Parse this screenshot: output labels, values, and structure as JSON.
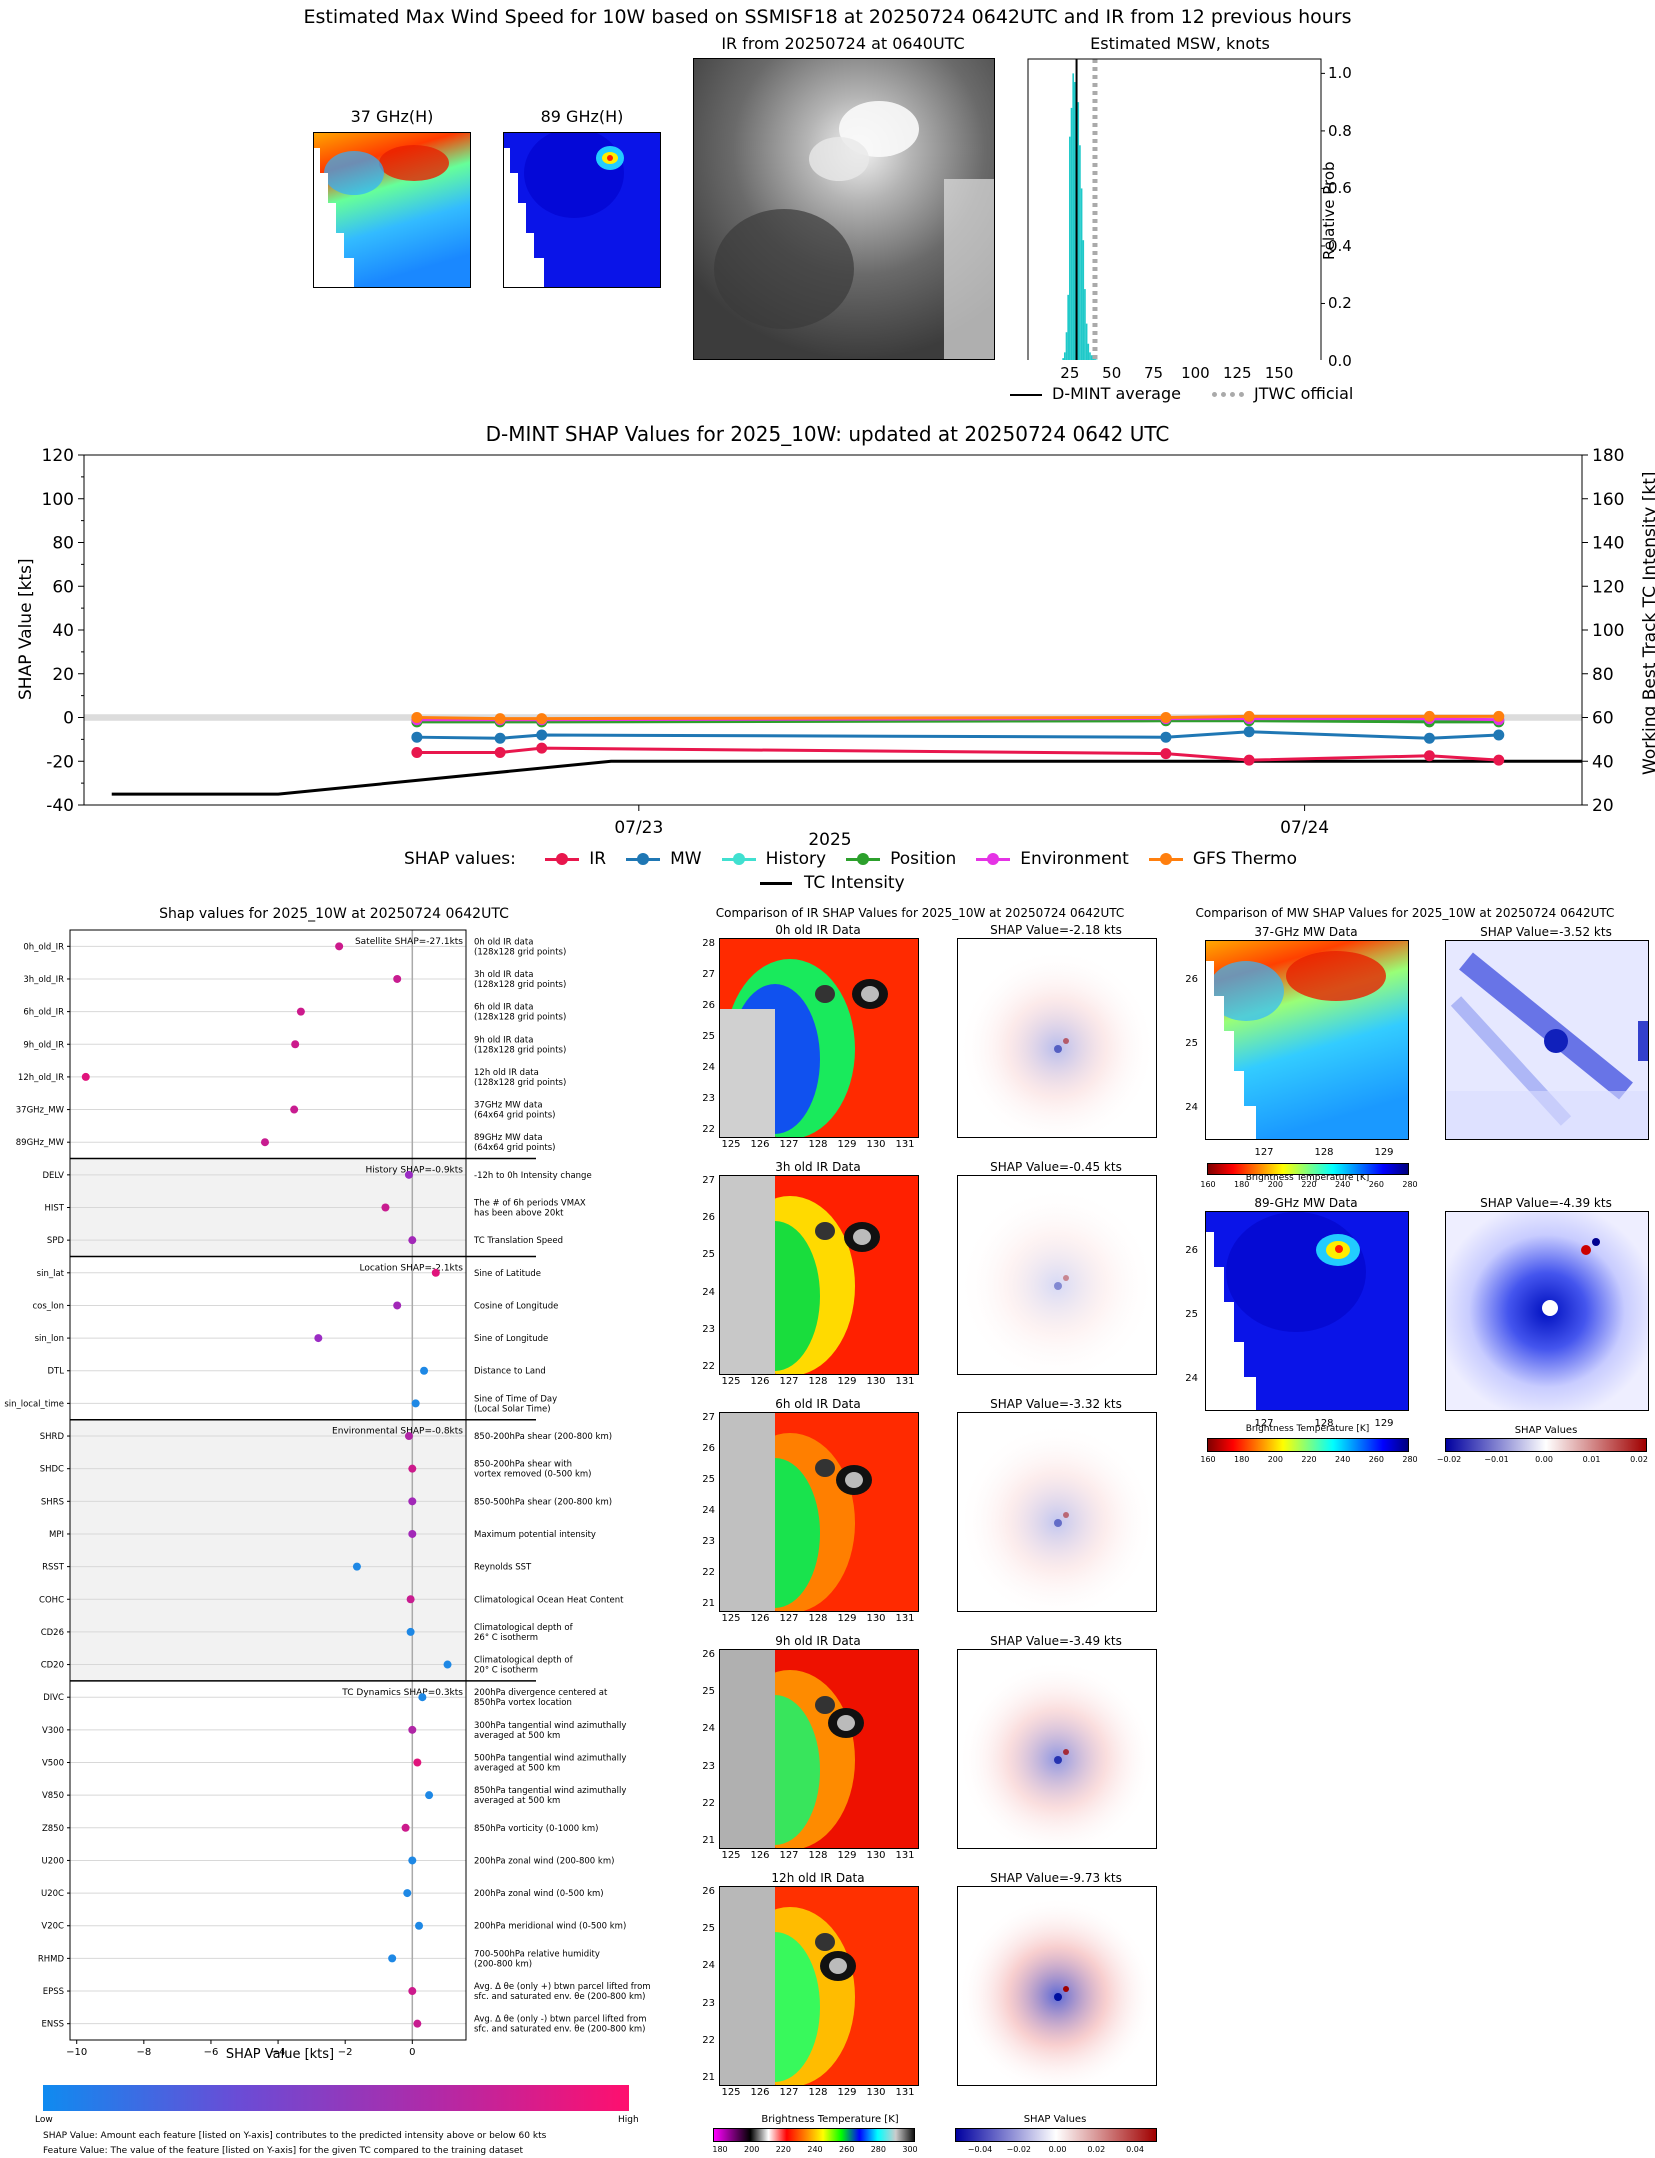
{
  "page_title": "Estimated Max Wind Speed for 10W based on SSMISF18 at 20250724 0642UTC and IR from 12 previous hours",
  "top": {
    "p37_title": "37 GHz(H)",
    "p89_title": "89 GHz(H)",
    "ir_title": "IR from 20250724 at 0640UTC",
    "msw_title": "Estimated MSW, knots",
    "msw_ylabel": "Relative Prob",
    "legend_dmint": "D-MINT average",
    "legend_jtwc": "JTWC official"
  },
  "shap_ts": {
    "title": "D-MINT SHAP Values for 2025_10W: updated at 20250724 0642 UTC",
    "ylabel_left": "SHAP Value [kts]",
    "ylabel_right": "Working Best Track TC Intensity [kt]",
    "year_label": "2025",
    "legend_prefix": "SHAP values:",
    "tc_label": "TC Intensity"
  },
  "bar": {
    "title": "Shap values for 2025_10W at 20250724 0642UTC",
    "xlabel": "SHAP Value [kts]",
    "cb_low": "Low",
    "cb_high": "High",
    "note1": "SHAP Value: Amount each feature [listed on Y-axis] contributes to the predicted intensity above or below 60 kts",
    "note2": "Feature Value: The value of the feature [listed on Y-axis] for the given TC compared to the training dataset",
    "group_labels": [
      "Satellite SHAP=-27.1kts",
      "History SHAP=-0.9kts",
      "Location SHAP=-2.1kts",
      "Environmental SHAP=-0.8kts",
      "TC Dynamics SHAP=0.3kts"
    ]
  },
  "ir": {
    "title": "Comparison of IR SHAP Values for 2025_10W at 20250724 0642UTC",
    "data_titles": [
      "0h old IR Data",
      "3h old IR Data",
      "6h old IR Data",
      "9h old IR Data",
      "12h old IR Data"
    ],
    "shap_titles": [
      "SHAP Value=-2.18 kts",
      "SHAP Value=-0.45 kts",
      "SHAP Value=-3.32 kts",
      "SHAP Value=-3.49 kts",
      "SHAP Value=-9.73 kts"
    ],
    "cb_label": "Brightness Temperature [K]",
    "shap_cb_label": "SHAP Values"
  },
  "mw": {
    "title": "Comparison of MW SHAP Values for 2025_10W at 20250724 0642UTC",
    "t37": "37-GHz MW Data",
    "t89": "89-GHz MW Data",
    "s37": "SHAP Value=-3.52 kts",
    "s89": "SHAP Value=-4.39 kts",
    "cb_label": "Brightness Temperature [K]",
    "shap_cb_label": "SHAP Values"
  },
  "chart_data": [
    {
      "type": "bar",
      "name": "msw_histogram",
      "title": "Estimated MSW, knots",
      "ylabel": "Relative Prob",
      "x": [
        21,
        22,
        23,
        24,
        25,
        26,
        27,
        28,
        29,
        30,
        31,
        32,
        33,
        34,
        35,
        36,
        37,
        38,
        39,
        40,
        41,
        42
      ],
      "values": [
        0.01,
        0.03,
        0.1,
        0.23,
        0.78,
        0.88,
        1.0,
        0.97,
        0.94,
        0.9,
        0.75,
        0.6,
        0.42,
        0.25,
        0.13,
        0.06,
        0.03,
        0.02,
        0.01,
        0.01,
        0.005,
        0.002
      ],
      "xlim": [
        0,
        175
      ],
      "ylim": [
        0,
        1.05
      ],
      "xticks": [
        25,
        50,
        75,
        100,
        125,
        150
      ],
      "yticks": [
        0.0,
        0.2,
        0.4,
        0.6,
        0.8,
        1.0
      ],
      "dmint_average": 29,
      "jtwc_official": 40
    },
    {
      "type": "line",
      "name": "shap_timeseries",
      "title": "D-MINT SHAP Values for 2025_10W: updated at 20250724 0642 UTC",
      "ylabel": "SHAP Value [kts]",
      "y2label": "Working Best Track TC Intensity [kt]",
      "ylim": [
        -40,
        120
      ],
      "y2lim": [
        20,
        180
      ],
      "yticks": [
        -40,
        -20,
        0,
        20,
        40,
        60,
        80,
        100,
        120
      ],
      "y2ticks": [
        20,
        40,
        60,
        80,
        100,
        120,
        140,
        160,
        180
      ],
      "xlim_hours": [
        0,
        54
      ],
      "xtick_labels": [
        {
          "h": 20,
          "label": "07/23"
        },
        {
          "h": 44,
          "label": "07/24"
        }
      ],
      "series": [
        {
          "name": "IR",
          "color": "#e8174d",
          "x": [
            12,
            15,
            16.5,
            39,
            42,
            48.5,
            51
          ],
          "values": [
            -16,
            -16,
            -14,
            -16.5,
            -19.5,
            -17.5,
            -19.5
          ]
        },
        {
          "name": "MW",
          "color": "#1f77b4",
          "x": [
            12,
            15,
            16.5,
            39,
            42,
            48.5,
            51
          ],
          "values": [
            -9,
            -9.5,
            -8,
            -9,
            -6.5,
            -9.5,
            -8
          ]
        },
        {
          "name": "History",
          "color": "#40e0d0",
          "x": [
            12,
            15,
            16.5,
            39,
            42,
            48.5,
            51
          ],
          "values": [
            -1,
            -1,
            -1,
            -1,
            -0.5,
            -1,
            -1
          ]
        },
        {
          "name": "Position",
          "color": "#2ca02c",
          "x": [
            12,
            15,
            16.5,
            39,
            42,
            48.5,
            51
          ],
          "values": [
            -2,
            -2,
            -2,
            -1.5,
            -1.5,
            -2,
            -2
          ]
        },
        {
          "name": "Environment",
          "color": "#e533e5",
          "x": [
            12,
            15,
            16.5,
            39,
            42,
            48.5,
            51
          ],
          "values": [
            -1,
            -1,
            -1,
            -0.5,
            -0.5,
            -0.5,
            -1
          ]
        },
        {
          "name": "GFS Thermo",
          "color": "#ff7f0e",
          "x": [
            12,
            15,
            16.5,
            39,
            42,
            48.5,
            51
          ],
          "values": [
            0,
            -0.5,
            -0.5,
            0,
            0.5,
            0.5,
            0.5
          ]
        }
      ],
      "tc_intensity": {
        "name": "TC Intensity",
        "x": [
          1,
          7,
          19,
          54
        ],
        "values": [
          25,
          25,
          40,
          40
        ]
      }
    },
    {
      "type": "scatter",
      "name": "feature_shap",
      "title": "Shap values for 2025_10W at 20250724 0642UTC",
      "xlabel": "SHAP Value [kts]",
      "xlim": [
        -10.2,
        1.6
      ],
      "xticks": [
        -10,
        -8,
        -6,
        -4,
        -2,
        0
      ],
      "features": [
        {
          "name": "0h_old_IR",
          "value": -2.18,
          "color": "#cc1a8c",
          "desc": [
            "0h old IR data",
            "(128x128 grid points)"
          ]
        },
        {
          "name": "3h_old_IR",
          "value": -0.45,
          "color": "#c81c90",
          "desc": [
            "3h old IR data",
            "(128x128 grid points)"
          ]
        },
        {
          "name": "6h_old_IR",
          "value": -3.32,
          "color": "#cc1a8c",
          "desc": [
            "6h old IR data",
            "(128x128 grid points)"
          ]
        },
        {
          "name": "9h_old_IR",
          "value": -3.49,
          "color": "#cc1a8c",
          "desc": [
            "9h old IR data",
            "(128x128 grid points)"
          ]
        },
        {
          "name": "12h_old_IR",
          "value": -9.73,
          "color": "#e0147c",
          "desc": [
            "12h old IR data",
            "(128x128 grid points)"
          ]
        },
        {
          "name": "37GHz_MW",
          "value": -3.52,
          "color": "#c81c90",
          "desc": [
            "37GHz MW data",
            "(64x64 grid points)"
          ]
        },
        {
          "name": "89GHz_MW",
          "value": -4.39,
          "color": "#c81c90",
          "desc": [
            "89GHz MW data",
            "(64x64 grid points)"
          ]
        },
        {
          "name": "DELV",
          "value": -0.1,
          "color": "#9b2cc4",
          "desc": [
            "-12h to 0h Intensity change"
          ]
        },
        {
          "name": "HIST",
          "value": -0.8,
          "color": "#c81c90",
          "desc": [
            "The # of 6h periods VMAX",
            "has been above 20kt"
          ]
        },
        {
          "name": "SPD",
          "value": 0.0,
          "color": "#a228b8",
          "desc": [
            "TC Translation Speed"
          ]
        },
        {
          "name": "sin_lat",
          "value": 0.7,
          "color": "#e0147c",
          "desc": [
            "Sine of Latitude"
          ]
        },
        {
          "name": "cos_lon",
          "value": -0.45,
          "color": "#a228b8",
          "desc": [
            "Cosine of Longitude"
          ]
        },
        {
          "name": "sin_lon",
          "value": -2.8,
          "color": "#9b2cc4",
          "desc": [
            "Sine of Longitude"
          ]
        },
        {
          "name": "DTL",
          "value": 0.35,
          "color": "#1e88e5",
          "desc": [
            "Distance to Land"
          ]
        },
        {
          "name": "sin_local_time",
          "value": 0.1,
          "color": "#1e88e5",
          "desc": [
            "Sine of Time of Day",
            "(Local Solar Time)"
          ]
        },
        {
          "name": "SHRD",
          "value": -0.1,
          "color": "#b026a6",
          "desc": [
            "850-200hPa shear (200-800 km)"
          ]
        },
        {
          "name": "SHDC",
          "value": 0.0,
          "color": "#cc1a8c",
          "desc": [
            "850-200hPa shear with",
            "vortex removed (0-500 km)"
          ]
        },
        {
          "name": "SHRS",
          "value": 0.0,
          "color": "#a228b8",
          "desc": [
            "850-500hPa shear (200-800 km)"
          ]
        },
        {
          "name": "MPI",
          "value": 0.0,
          "color": "#a228b8",
          "desc": [
            "Maximum potential intensity"
          ]
        },
        {
          "name": "RSST",
          "value": -1.65,
          "color": "#1e88e5",
          "desc": [
            "Reynolds SST"
          ]
        },
        {
          "name": "COHC",
          "value": -0.05,
          "color": "#c81c90",
          "desc": [
            "Climatological Ocean Heat Content"
          ]
        },
        {
          "name": "CD26",
          "value": -0.05,
          "color": "#1e88e5",
          "desc": [
            "Climatological depth of",
            "26° C isotherm"
          ]
        },
        {
          "name": "CD20",
          "value": 1.05,
          "color": "#1e88e5",
          "desc": [
            "Climatological depth of",
            "20° C isotherm"
          ]
        },
        {
          "name": "DIVC",
          "value": 0.3,
          "color": "#1e88e5",
          "desc": [
            "200hPa divergence centered at",
            "850hPa vortex location"
          ]
        },
        {
          "name": "V300",
          "value": 0.0,
          "color": "#b026a6",
          "desc": [
            "300hPa tangential wind azimuthally",
            "averaged at 500 km"
          ]
        },
        {
          "name": "V500",
          "value": 0.15,
          "color": "#e0147c",
          "desc": [
            "500hPa tangential wind azimuthally",
            "averaged at 500 km"
          ]
        },
        {
          "name": "V850",
          "value": 0.5,
          "color": "#1e88e5",
          "desc": [
            "850hPa tangential wind azimuthally",
            "averaged at 500 km"
          ]
        },
        {
          "name": "Z850",
          "value": -0.2,
          "color": "#cc1a8c",
          "desc": [
            "850hPa vorticity (0-1000 km)"
          ]
        },
        {
          "name": "U200",
          "value": 0.0,
          "color": "#1e88e5",
          "desc": [
            "200hPa zonal wind (200-800 km)"
          ]
        },
        {
          "name": "U20C",
          "value": -0.15,
          "color": "#1e88e5",
          "desc": [
            "200hPa zonal wind (0-500 km)"
          ]
        },
        {
          "name": "V20C",
          "value": 0.2,
          "color": "#1e88e5",
          "desc": [
            "200hPa meridional wind (0-500 km)"
          ]
        },
        {
          "name": "RHMD",
          "value": -0.6,
          "color": "#1e88e5",
          "desc": [
            "700-500hPa relative humidity",
            "(200-800 km)"
          ]
        },
        {
          "name": "EPSS",
          "value": 0.0,
          "color": "#cc1a8c",
          "desc": [
            "Avg. Δ θe (only +) btwn parcel lifted from",
            "sfc. and saturated env. θe (200-800 km)"
          ]
        },
        {
          "name": "ENSS",
          "value": 0.15,
          "color": "#c81c90",
          "desc": [
            "Avg. Δ θe (only -) btwn parcel lifted from",
            "sfc. and saturated env. θe (200-800 km)"
          ]
        }
      ]
    }
  ],
  "colors": {
    "jet": [
      "#00007f",
      "#0000ff",
      "#007fff",
      "#00ffff",
      "#7fff7f",
      "#ffff00",
      "#ff7f00",
      "#ff0000",
      "#7f0000"
    ],
    "ir_cmap": [
      "#ff00ff",
      "#7f007f",
      "#000000",
      "#ffffff",
      "#ff0000",
      "#ff7f00",
      "#ffff00",
      "#00ff00",
      "#0000ff",
      "#00ffff",
      "#d0d0d0",
      "#202020"
    ],
    "shap_cmap": [
      "#0000a0",
      "#ffffff",
      "#a00000"
    ],
    "feature_cmap": [
      "#0f8bf0",
      "#ff0f6e"
    ]
  },
  "axes_ticks": {
    "ir_lon": [
      "125",
      "126",
      "127",
      "128",
      "129",
      "130",
      "131"
    ],
    "ir_lat_sets": [
      [
        "28",
        "27",
        "26",
        "25",
        "24",
        "23",
        "22"
      ],
      [
        "27",
        "26",
        "25",
        "24",
        "23",
        "22"
      ],
      [
        "27",
        "26",
        "25",
        "24",
        "23",
        "22",
        "21"
      ],
      [
        "26",
        "25",
        "24",
        "23",
        "22",
        "21"
      ],
      [
        "26",
        "25",
        "24",
        "23",
        "22",
        "21"
      ]
    ],
    "mw_lon": [
      "127",
      "128",
      "129"
    ],
    "mw_lat": [
      "26",
      "25",
      "24"
    ],
    "ir_cb_ticks": [
      "180",
      "200",
      "220",
      "240",
      "260",
      "280",
      "300"
    ],
    "mw_cb_ticks": [
      "160",
      "180",
      "200",
      "220",
      "240",
      "260",
      "280"
    ],
    "shap_cb_ticks_ir": [
      "−0.04",
      "−0.02",
      "0.00",
      "0.02",
      "0.04"
    ],
    "shap_cb_ticks_mw": [
      "−0.02",
      "−0.01",
      "0.00",
      "0.01",
      "0.02"
    ]
  }
}
